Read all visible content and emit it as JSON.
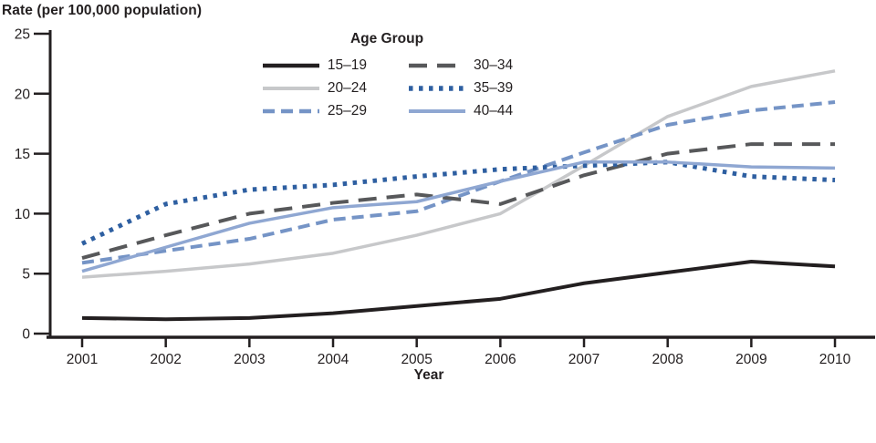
{
  "chart_data": {
    "type": "line",
    "title": "Rate (per 100,000 population)",
    "xlabel": "Year",
    "legend_title": "Age Group",
    "legend_position": "top-center",
    "grid": false,
    "axis_color": "#231f20",
    "x": [
      2001,
      2002,
      2003,
      2004,
      2005,
      2006,
      2007,
      2008,
      2009,
      2010
    ],
    "ylim": [
      0,
      25
    ],
    "yticks": [
      0,
      5,
      10,
      15,
      20,
      25
    ],
    "series": [
      {
        "name": "15–19",
        "color": "#231f20",
        "style": "solid",
        "width": 4,
        "values": [
          1.3,
          1.2,
          1.3,
          1.7,
          2.3,
          2.9,
          4.2,
          5.1,
          6.0,
          5.6
        ]
      },
      {
        "name": "20–24",
        "color": "#c7c8ca",
        "style": "solid",
        "width": 3.5,
        "values": [
          4.7,
          5.2,
          5.8,
          6.7,
          8.2,
          10.0,
          14.0,
          18.1,
          20.6,
          21.9
        ]
      },
      {
        "name": "25–29",
        "color": "#7594c6",
        "style": "dashed",
        "width": 4,
        "values": [
          5.9,
          6.9,
          7.9,
          9.5,
          10.2,
          12.7,
          15.1,
          17.4,
          18.6,
          19.3
        ]
      },
      {
        "name": "30–34",
        "color": "#57585a",
        "style": "longdash",
        "width": 4,
        "values": [
          6.3,
          8.2,
          10.0,
          10.9,
          11.6,
          10.8,
          13.2,
          15.0,
          15.8,
          15.8
        ]
      },
      {
        "name": "35–39",
        "color": "#2e5fa1",
        "style": "dotted",
        "width": 5,
        "values": [
          7.5,
          10.8,
          12.0,
          12.4,
          13.1,
          13.7,
          14.0,
          14.3,
          13.1,
          12.8
        ]
      },
      {
        "name": "40–44",
        "color": "#8fa7d2",
        "style": "solid",
        "width": 3.5,
        "values": [
          5.2,
          7.2,
          9.2,
          10.5,
          11.0,
          12.7,
          14.3,
          14.3,
          13.9,
          13.8
        ]
      }
    ]
  }
}
